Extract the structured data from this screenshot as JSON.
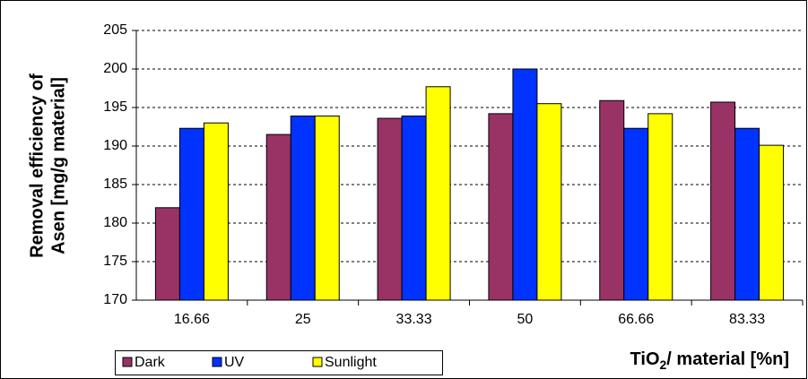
{
  "chart_data": {
    "type": "bar",
    "y_label": [
      "Removal efficiency of",
      "Asen [mg/g material]"
    ],
    "x_label": [
      "TiO",
      "2",
      "/ material  [%n]"
    ],
    "categories": [
      "16.66",
      "25",
      "33.33",
      "50",
      "66.66",
      "83.33"
    ],
    "series": [
      {
        "name": "Dark",
        "color": "#993366",
        "values": [
          182,
          191.5,
          193.6,
          194.2,
          195.9,
          195.7
        ]
      },
      {
        "name": "UV",
        "color": "#0033ff",
        "values": [
          192.3,
          193.9,
          193.9,
          200,
          192.3,
          192.3
        ]
      },
      {
        "name": "Sunlight",
        "color": "#ffff00",
        "values": [
          193,
          193.9,
          197.7,
          195.5,
          194.2,
          190.1
        ]
      }
    ],
    "ylim": [
      170,
      205
    ],
    "yticks": [
      170,
      175,
      180,
      185,
      190,
      195,
      200,
      205
    ],
    "grid": true,
    "legend": "bottom-left"
  }
}
